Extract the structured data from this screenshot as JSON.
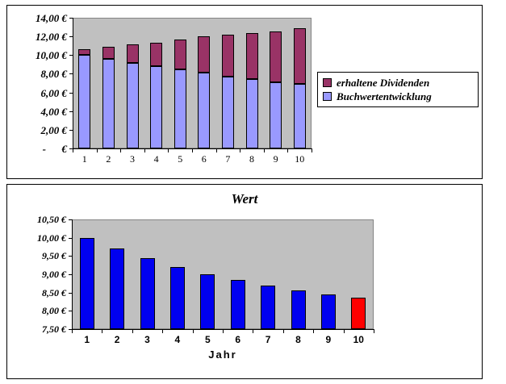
{
  "chart_data": [
    {
      "type": "bar",
      "stacked": true,
      "categories": [
        "1",
        "2",
        "3",
        "4",
        "5",
        "6",
        "7",
        "8",
        "9",
        "10"
      ],
      "series": [
        {
          "name": "Buchwertentwicklung",
          "color": "#9999FF",
          "values": [
            10.0,
            9.6,
            9.2,
            8.8,
            8.5,
            8.1,
            7.7,
            7.4,
            7.1,
            6.9
          ]
        },
        {
          "name": "erhaltene Dividenden",
          "color": "#993366",
          "values": [
            0.6,
            1.3,
            1.95,
            2.55,
            3.15,
            3.9,
            4.5,
            5.0,
            5.45,
            5.95
          ]
        }
      ],
      "y_ticks": [
        "14,00 €",
        "12,00 €",
        "10,00 €",
        "8,00 €",
        "6,00 €",
        "4,00 €",
        "2,00 €",
        "-      €"
      ],
      "y_min": 0,
      "y_max": 14,
      "grid": false,
      "plot_bg": "#C0C0C0",
      "legend": {
        "position": "right",
        "entries": [
          {
            "label": "erhaltene Dividenden",
            "color": "#993366"
          },
          {
            "label": "Buchwertentwicklung",
            "color": "#9999FF"
          }
        ]
      }
    },
    {
      "type": "bar",
      "title": "Wert",
      "xlabel": "Jahr",
      "categories": [
        "1",
        "2",
        "3",
        "4",
        "5",
        "6",
        "7",
        "8",
        "9",
        "10"
      ],
      "values": [
        10.0,
        9.7,
        9.45,
        9.2,
        9.0,
        8.85,
        8.7,
        8.55,
        8.45,
        8.35
      ],
      "bar_colors": [
        "#0000F0",
        "#0000F0",
        "#0000F0",
        "#0000F0",
        "#0000F0",
        "#0000F0",
        "#0000F0",
        "#0000F0",
        "#0000F0",
        "#FF0000"
      ],
      "highlight": {
        "category": "10",
        "color": "#FF0000"
      },
      "y_ticks": [
        "10,50 €",
        "10,00 €",
        "9,50 €",
        "9,00 €",
        "8,50 €",
        "8,00 €",
        "7,50 €"
      ],
      "y_min": 7.5,
      "y_max": 10.5,
      "grid": false,
      "plot_bg": "#C0C0C0"
    }
  ]
}
